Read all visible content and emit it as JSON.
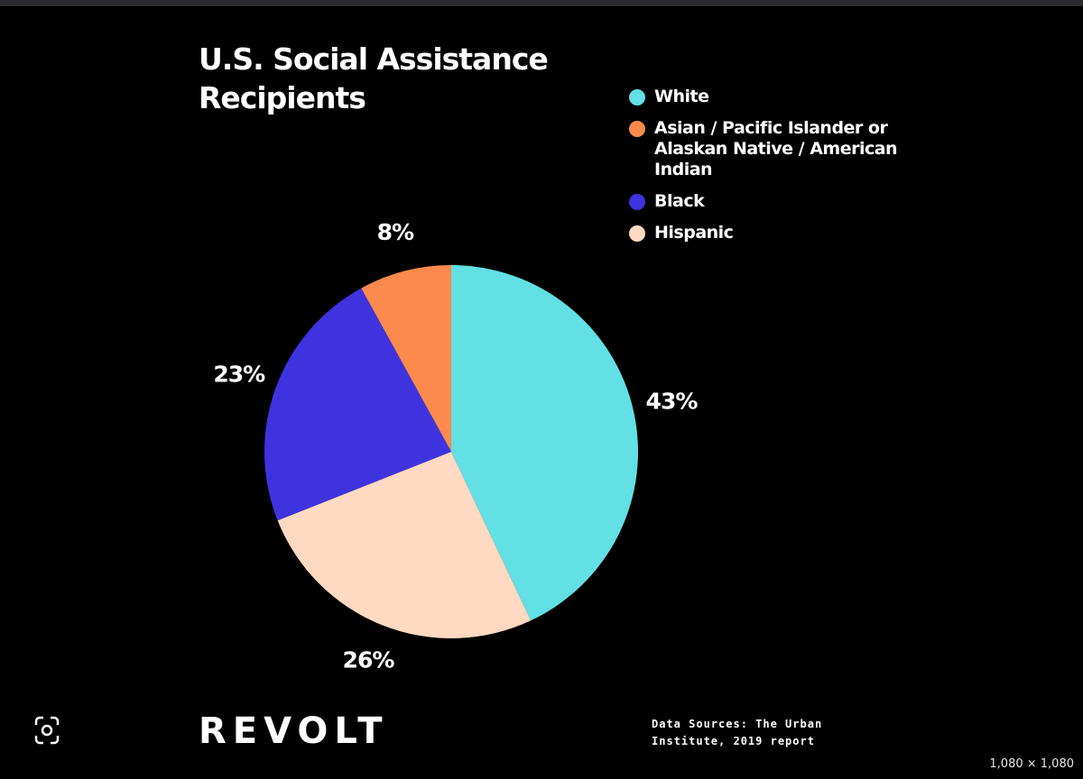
{
  "chart_data": {
    "type": "pie",
    "title": "U.S. Social Assistance Recipients",
    "categories": [
      "White",
      "Asian / Pacific Islander or Alaskan Native / American Indian",
      "Black",
      "Hispanic"
    ],
    "values": [
      43,
      8,
      23,
      26
    ],
    "value_labels": [
      "43%",
      "8%",
      "23%",
      "26%"
    ],
    "colors": [
      "#62e0e4",
      "#fb8a4c",
      "#3f33e0",
      "#ffd9c2"
    ],
    "source": "Data Sources: The Urban Institute, 2019 report",
    "brand": "REVOLT"
  },
  "viewer": {
    "image_size": "1,080 × 1,080"
  }
}
